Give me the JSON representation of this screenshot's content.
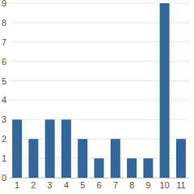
{
  "chart_data": {
    "type": "bar",
    "categories": [
      "1",
      "2",
      "3",
      "4",
      "5",
      "6",
      "7",
      "8",
      "9",
      "10",
      "11"
    ],
    "values": [
      3,
      2,
      3,
      3,
      2,
      1,
      2,
      1,
      1,
      9,
      2
    ],
    "color": "#336699",
    "ylim": [
      0,
      9
    ],
    "yticks": [
      0,
      1,
      2,
      3,
      4,
      5,
      6,
      7,
      8,
      9
    ],
    "grid": true
  }
}
